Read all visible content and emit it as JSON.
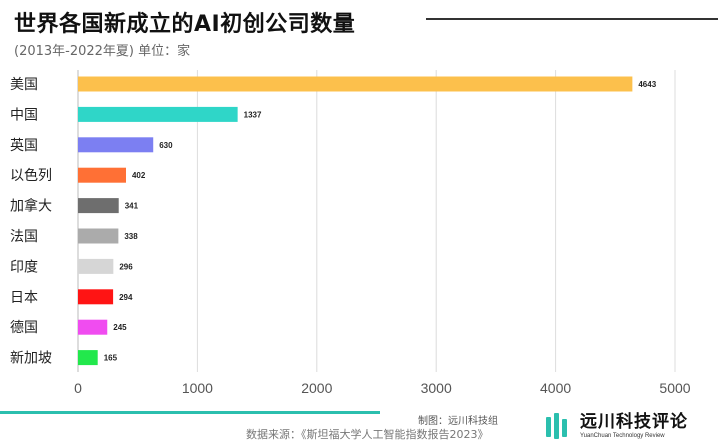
{
  "header": {
    "title": "世界各国新成立的AI初创公司数量",
    "subtitle": "(2013年-2022年夏)  单位：家"
  },
  "footer": {
    "credit": "制图：远川科技组",
    "source": "数据来源：《斯坦福大学人工智能指数报告2023》",
    "brand_cn": "远川科技评论",
    "brand_en": "YuanChuan Technology Review"
  },
  "colors": {
    "accent": "#2bbfae",
    "grid": "#dcdcdc"
  },
  "chart_data": {
    "type": "bar",
    "orientation": "horizontal",
    "title": "世界各国新成立的AI初创公司数量",
    "subtitle": "(2013年-2022年夏)  单位：家",
    "categories": [
      "美国",
      "中国",
      "英国",
      "以色列",
      "加拿大",
      "法国",
      "印度",
      "日本",
      "德国",
      "新加坡"
    ],
    "values": [
      4643,
      1337,
      630,
      402,
      341,
      338,
      296,
      294,
      245,
      165
    ],
    "bar_colors": [
      "#fcc04c",
      "#2fd6c8",
      "#7c7ff2",
      "#ff7035",
      "#6e6e6e",
      "#ababab",
      "#d6d6d6",
      "#ff1414",
      "#f04cf0",
      "#22e84c"
    ],
    "xlim": [
      0,
      5000
    ],
    "xticks": [
      "0",
      "1000",
      "2000",
      "3000",
      "4000",
      "5000"
    ],
    "grid": true,
    "data_labels": true
  }
}
